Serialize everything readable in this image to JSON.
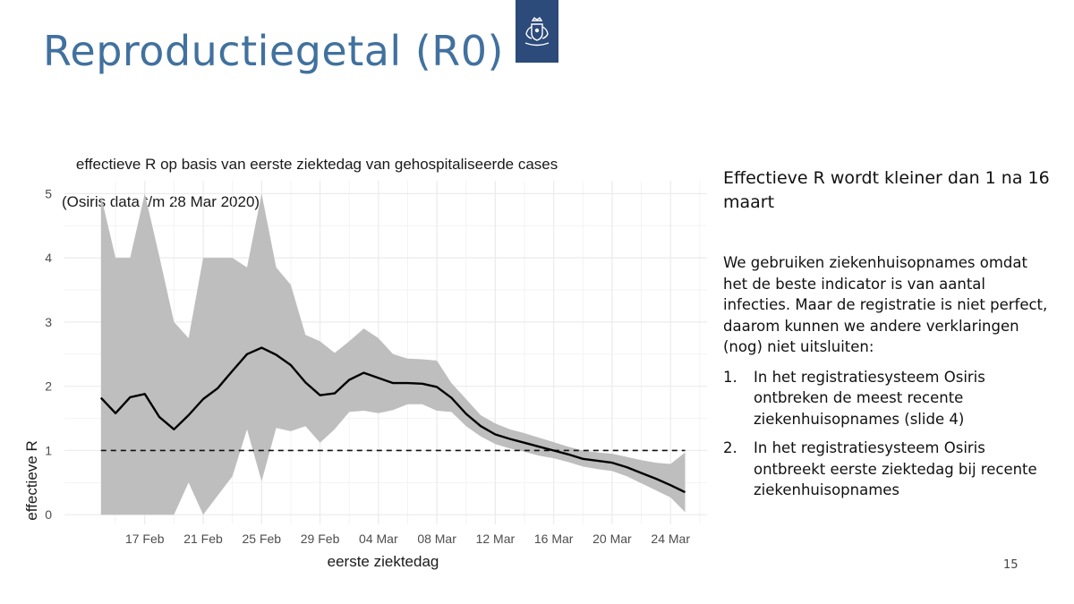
{
  "slide": {
    "title": "Reproductiegetal (R0)",
    "page_number": "15"
  },
  "logo": {
    "icon": "crown-emblem-icon",
    "color": "#2c4a7a"
  },
  "colors": {
    "title": "#41719e",
    "band": "#bebebe",
    "line": "#000000",
    "grid": "#ebebeb"
  },
  "chart_data": {
    "type": "line",
    "title": "effectieve R op basis van eerste ziektedag van gehospitaliseerde cases",
    "subtitle": "(Osiris data t/m 28 Mar 2020)",
    "xlabel": "eerste ziektedag",
    "ylabel": "effectieve R",
    "xlim": [
      -4.5,
      39.5
    ],
    "ylim": [
      -0.15,
      5.2
    ],
    "x_ticks": [
      {
        "day": 1,
        "label": "17 Feb"
      },
      {
        "day": 5,
        "label": "21 Feb"
      },
      {
        "day": 9,
        "label": "25 Feb"
      },
      {
        "day": 13,
        "label": "29 Feb"
      },
      {
        "day": 17,
        "label": "04 Mar"
      },
      {
        "day": 21,
        "label": "08 Mar"
      },
      {
        "day": 25,
        "label": "12 Mar"
      },
      {
        "day": 29,
        "label": "16 Mar"
      },
      {
        "day": 33,
        "label": "20 Mar"
      },
      {
        "day": 37,
        "label": "24 Mar"
      }
    ],
    "y_ticks": [
      0,
      1,
      2,
      3,
      4,
      5
    ],
    "x_day_offset_note": "day 0 = 16 Feb",
    "x": [
      -2,
      -1,
      0,
      1,
      2,
      3,
      4,
      5,
      6,
      7,
      8,
      9,
      10,
      11,
      12,
      13,
      14,
      15,
      16,
      17,
      18,
      19,
      20,
      21,
      22,
      23,
      24,
      25,
      26,
      27,
      28,
      29,
      30,
      31,
      32,
      33,
      34,
      35,
      36,
      37,
      38
    ],
    "series": [
      {
        "name": "effectieve R",
        "values": [
          1.82,
          1.58,
          1.83,
          1.88,
          1.52,
          1.33,
          1.55,
          1.8,
          1.97,
          2.24,
          2.5,
          2.6,
          2.49,
          2.33,
          2.06,
          1.86,
          1.89,
          2.1,
          2.21,
          2.13,
          2.05,
          2.05,
          2.04,
          1.99,
          1.82,
          1.57,
          1.38,
          1.25,
          1.18,
          1.12,
          1.06,
          1.0,
          0.94,
          0.87,
          0.84,
          0.81,
          0.74,
          0.65,
          0.56,
          0.46,
          0.35
        ]
      }
    ],
    "ci_lower": [
      0.0,
      0.0,
      0.0,
      0.0,
      0.0,
      0.0,
      0.5,
      0.0,
      0.3,
      0.6,
      1.33,
      0.52,
      1.35,
      1.3,
      1.38,
      1.12,
      1.33,
      1.6,
      1.62,
      1.58,
      1.63,
      1.72,
      1.72,
      1.62,
      1.6,
      1.38,
      1.22,
      1.1,
      1.03,
      0.98,
      0.92,
      0.88,
      0.82,
      0.75,
      0.71,
      0.68,
      0.6,
      0.49,
      0.38,
      0.27,
      0.04
    ],
    "ci_upper": [
      4.97,
      4.0,
      4.0,
      5.0,
      4.02,
      3.0,
      2.75,
      4.0,
      4.0,
      4.0,
      3.85,
      5.0,
      3.85,
      3.58,
      2.8,
      2.7,
      2.52,
      2.7,
      2.9,
      2.75,
      2.5,
      2.43,
      2.42,
      2.4,
      2.05,
      1.8,
      1.55,
      1.42,
      1.33,
      1.27,
      1.2,
      1.13,
      1.06,
      1.0,
      0.97,
      0.95,
      0.9,
      0.85,
      0.81,
      0.79,
      0.97
    ],
    "reference_line": {
      "y": 1,
      "style": "dashed"
    },
    "legend": "none"
  },
  "right_panel": {
    "headline": "Effectieve R wordt kleiner dan 1 na 16 maart",
    "paragraph": "We gebruiken ziekenhuisopnames omdat het de beste indicator is van aantal infecties. Maar de registratie is niet perfect, daarom kunnen we andere verklaringen (nog) niet uitsluiten:",
    "items": [
      {
        "num": "1.",
        "text": "In het registratiesysteem Osiris ontbreken de meest recente ziekenhuisopnames (slide 4)"
      },
      {
        "num": "2.",
        "text": "In het registratiesysteem Osiris ontbreekt eerste ziektedag bij recente ziekenhuisopnames"
      }
    ]
  }
}
